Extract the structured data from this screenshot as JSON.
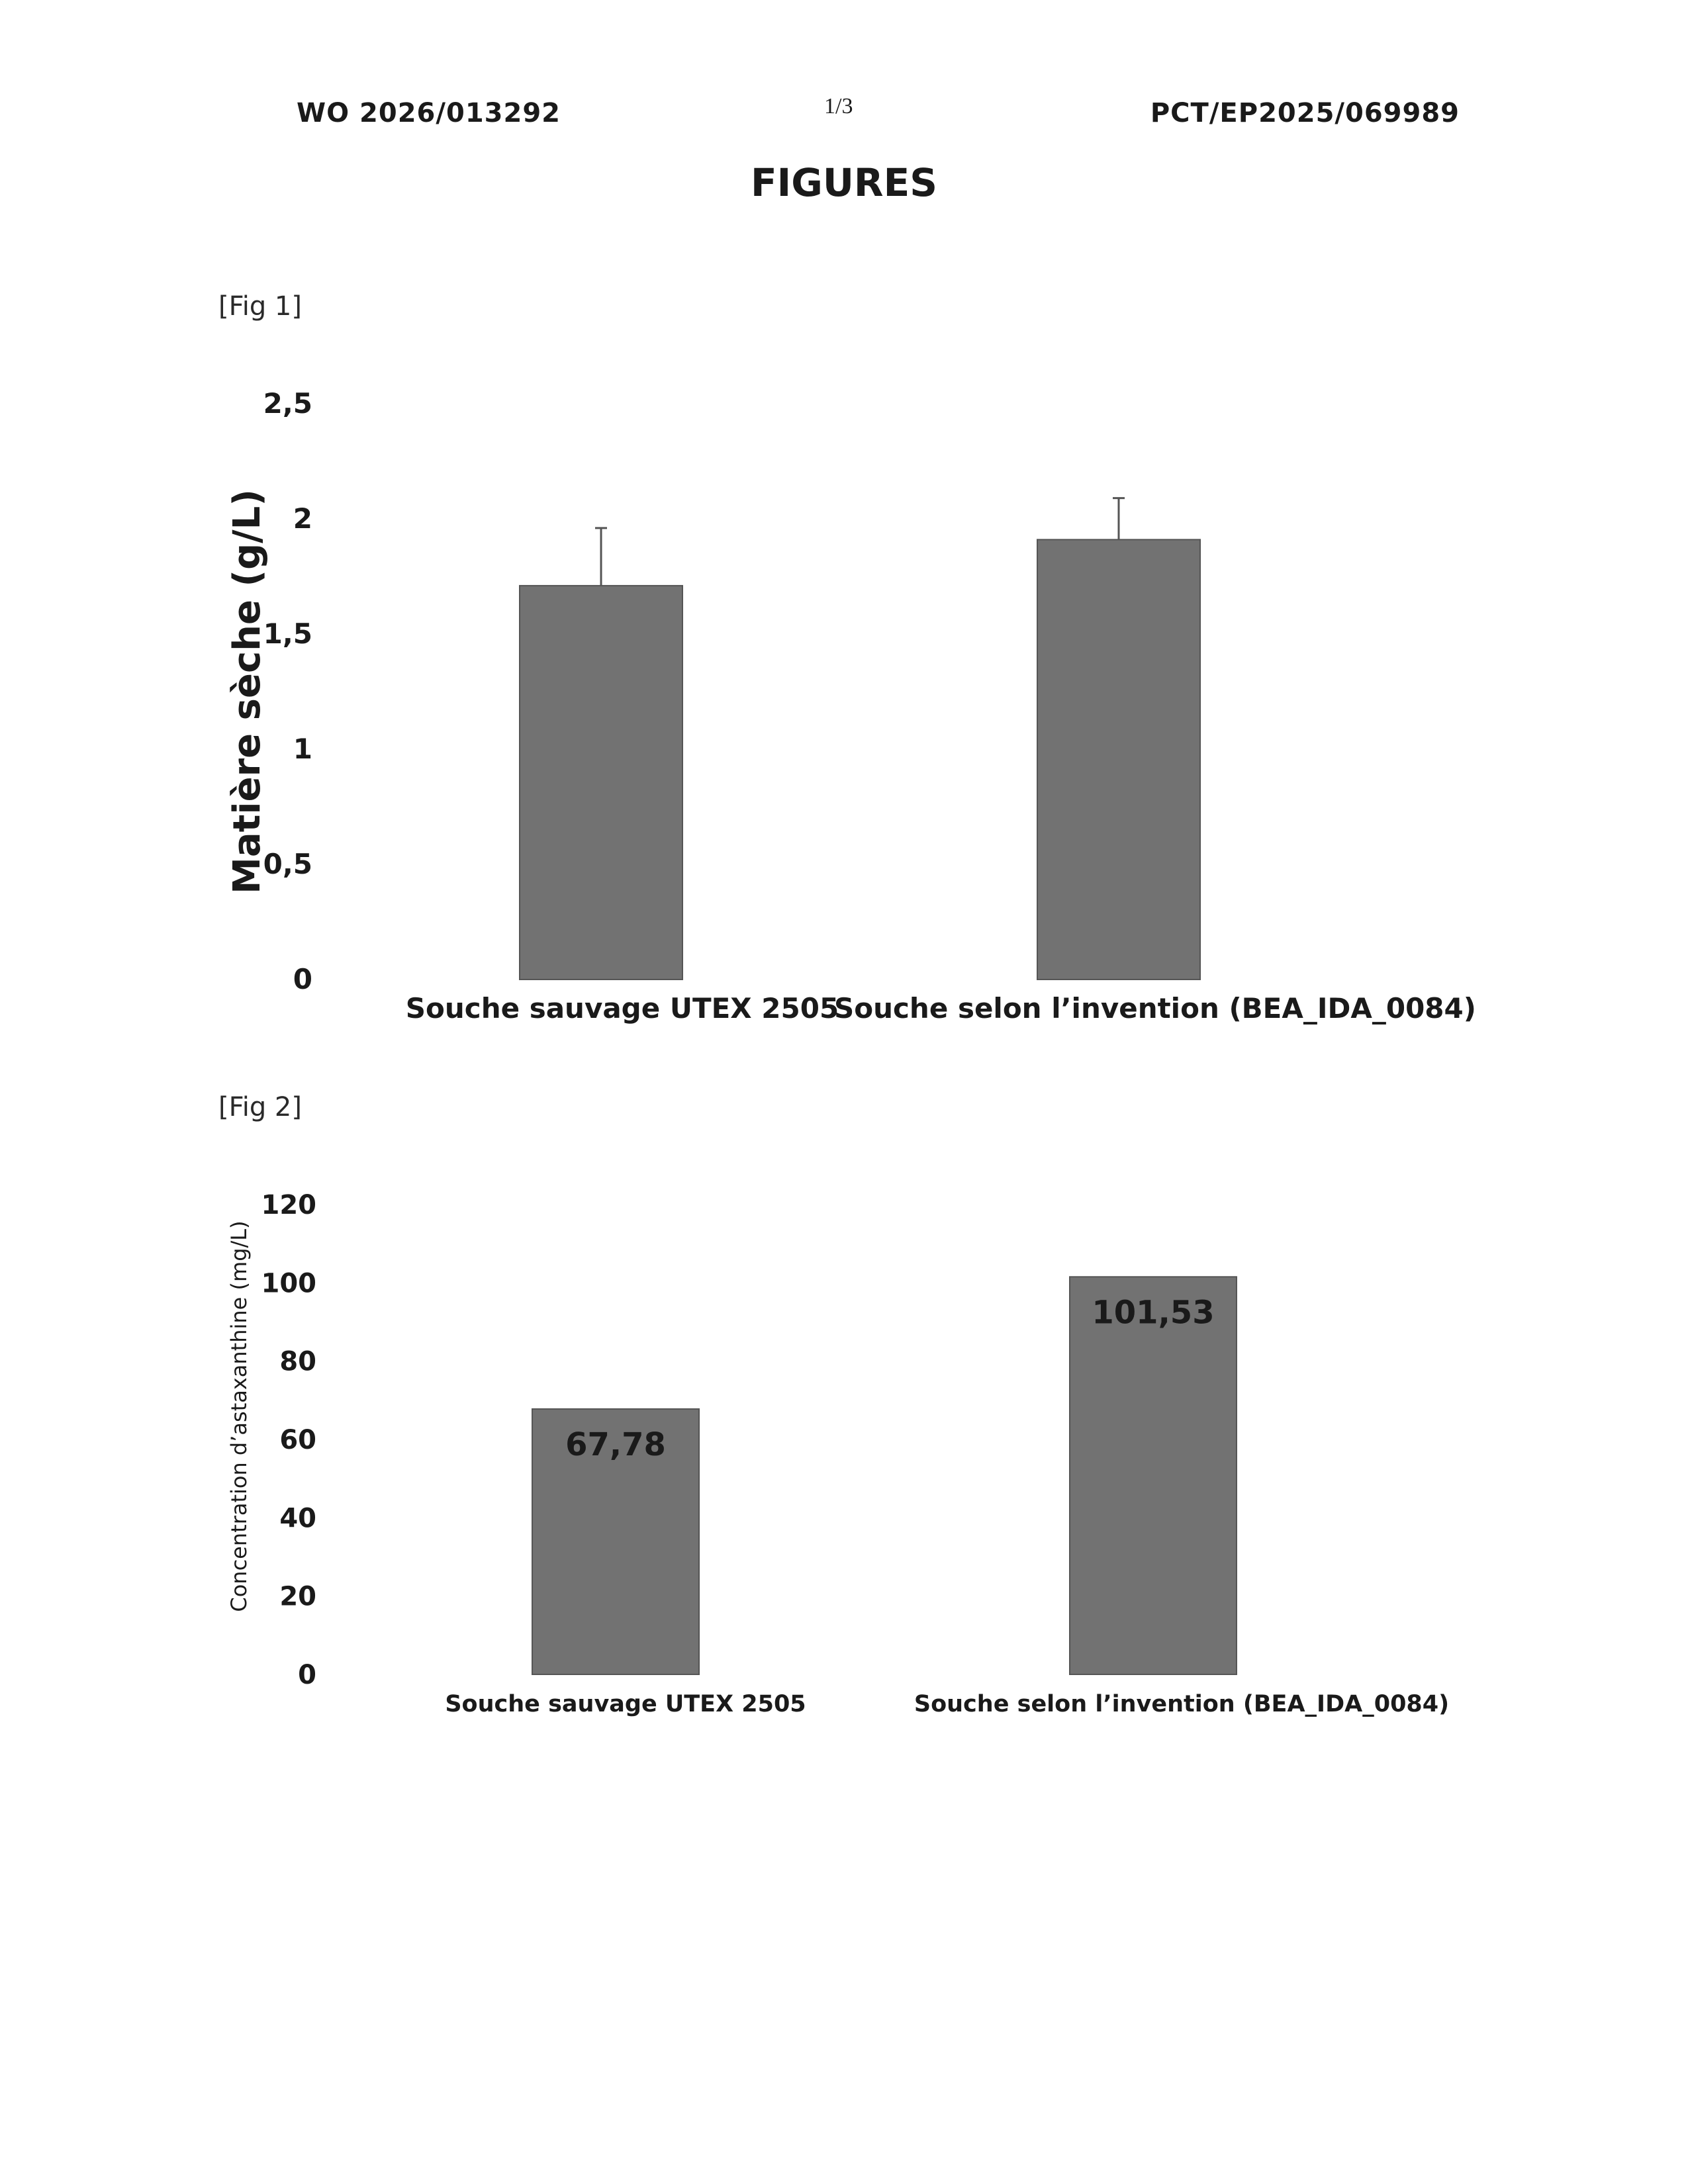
{
  "header": {
    "left": "WO 2026/013292",
    "page": "1/3",
    "right": "PCT/EP2025/069989"
  },
  "title": "FIGURES",
  "figures": [
    {
      "label": "[Fig 1]"
    },
    {
      "label": "[Fig 2]"
    }
  ],
  "chart_data": [
    {
      "type": "bar",
      "title": "",
      "categories": [
        "Souche sauvage UTEX 2505",
        "Souche selon l’invention (BEA_IDA_0084)"
      ],
      "values": [
        1.71,
        1.91
      ],
      "error_upper": [
        1.96,
        2.09
      ],
      "ylabel": "Matière sèche (g/L)",
      "xlabel": "",
      "ylim": [
        0,
        2.5
      ],
      "yticks": [
        0,
        0.5,
        1,
        1.5,
        2,
        2.5
      ],
      "ytick_labels": [
        "0",
        "0,5",
        "1",
        "1,5",
        "2",
        "2,5"
      ],
      "grid": false,
      "bar_color": "#727272"
    },
    {
      "type": "bar",
      "title": "",
      "categories": [
        "Souche sauvage UTEX 2505",
        "Souche selon l’invention (BEA_IDA_0084)"
      ],
      "values": [
        67.78,
        101.53
      ],
      "data_labels": [
        "67,78",
        "101,53"
      ],
      "ylabel": "Concentration d’astaxanthine (mg/L)",
      "xlabel": "",
      "ylim": [
        0,
        120
      ],
      "yticks": [
        0,
        20,
        40,
        60,
        80,
        100,
        120
      ],
      "ytick_labels": [
        "0",
        "20",
        "40",
        "60",
        "80",
        "100",
        "120"
      ],
      "grid": false,
      "bar_color": "#727272"
    }
  ]
}
